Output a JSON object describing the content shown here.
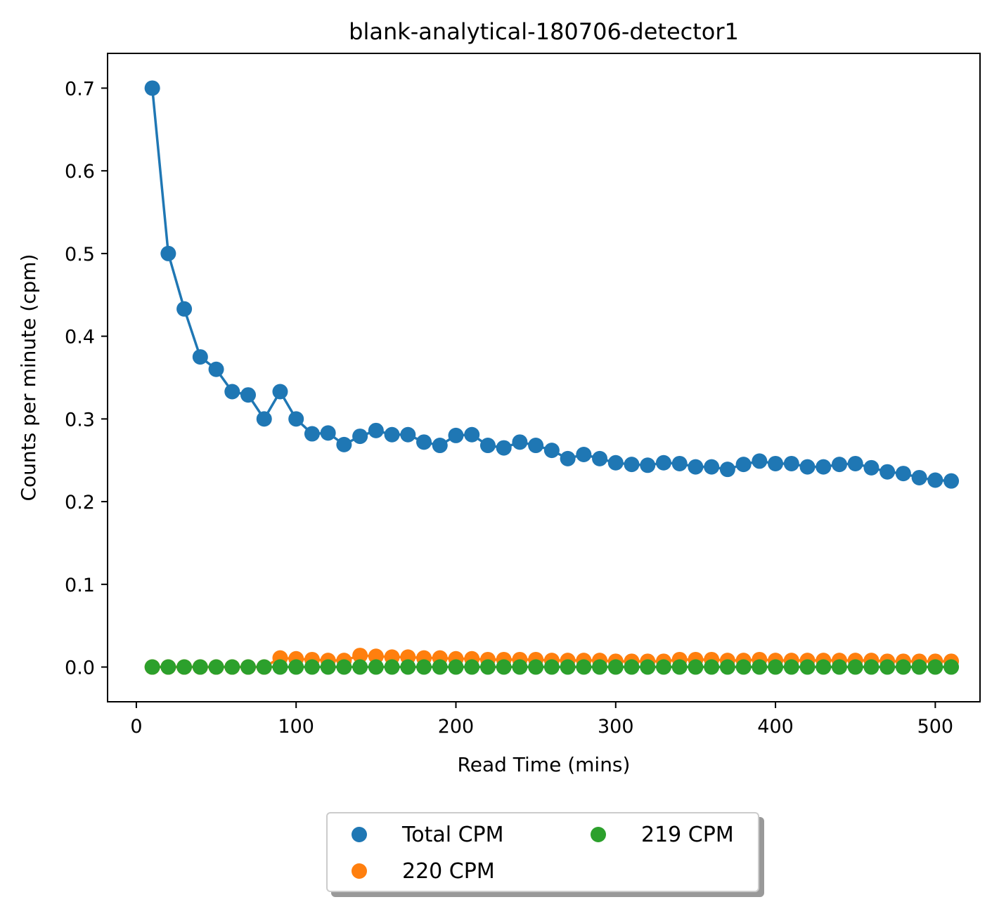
{
  "chart_data": {
    "type": "scatter",
    "title": "blank-analytical-180706-detector1",
    "xlabel": "Read Time (mins)",
    "ylabel": "Counts per minute (cpm)",
    "xlim": [
      -18,
      528
    ],
    "ylim": [
      -0.042,
      0.742
    ],
    "xticks": [
      0,
      100,
      200,
      300,
      400,
      500
    ],
    "xtick_labels": [
      "0",
      "100",
      "200",
      "300",
      "400",
      "500"
    ],
    "yticks": [
      0.0,
      0.1,
      0.2,
      0.3,
      0.4,
      0.5,
      0.6,
      0.7
    ],
    "ytick_labels": [
      "0.0",
      "0.1",
      "0.2",
      "0.3",
      "0.4",
      "0.5",
      "0.6",
      "0.7"
    ],
    "grid": false,
    "legend_position": "below-center",
    "x": [
      10,
      20,
      30,
      40,
      50,
      60,
      70,
      80,
      90,
      100,
      110,
      120,
      130,
      140,
      150,
      160,
      170,
      180,
      190,
      200,
      210,
      220,
      230,
      240,
      250,
      260,
      270,
      280,
      290,
      300,
      310,
      320,
      330,
      340,
      350,
      360,
      370,
      380,
      390,
      400,
      410,
      420,
      430,
      440,
      450,
      460,
      470,
      480,
      490,
      500,
      510
    ],
    "series": [
      {
        "name": "Total CPM",
        "color": "#1f77b4",
        "line": true,
        "values": [
          0.7,
          0.5,
          0.433,
          0.375,
          0.36,
          0.333,
          0.329,
          0.3,
          0.333,
          0.3,
          0.282,
          0.283,
          0.269,
          0.279,
          0.286,
          0.281,
          0.281,
          0.272,
          0.268,
          0.28,
          0.281,
          0.268,
          0.265,
          0.272,
          0.268,
          0.262,
          0.252,
          0.257,
          0.252,
          0.247,
          0.245,
          0.244,
          0.247,
          0.246,
          0.242,
          0.242,
          0.239,
          0.245,
          0.249,
          0.246,
          0.246,
          0.242,
          0.242,
          0.245,
          0.246,
          0.241,
          0.236,
          0.234,
          0.229,
          0.226,
          0.225
        ]
      },
      {
        "name": "220 CPM",
        "color": "#ff7f0e",
        "line": true,
        "values": [
          0.0,
          0.0,
          0.0,
          0.0,
          0.0,
          0.0,
          0.0,
          0.0,
          0.011,
          0.01,
          0.009,
          0.008,
          0.008,
          0.014,
          0.013,
          0.012,
          0.012,
          0.011,
          0.011,
          0.01,
          0.01,
          0.009,
          0.009,
          0.009,
          0.009,
          0.008,
          0.008,
          0.008,
          0.008,
          0.007,
          0.007,
          0.007,
          0.007,
          0.009,
          0.009,
          0.009,
          0.008,
          0.008,
          0.009,
          0.008,
          0.008,
          0.008,
          0.008,
          0.008,
          0.008,
          0.008,
          0.007,
          0.007,
          0.007,
          0.007,
          0.007
        ]
      },
      {
        "name": "219 CPM",
        "color": "#2ca02c",
        "line": true,
        "values": [
          0,
          0,
          0,
          0,
          0,
          0,
          0,
          0,
          0,
          0,
          0,
          0,
          0,
          0,
          0,
          0,
          0,
          0,
          0,
          0,
          0,
          0,
          0,
          0,
          0,
          0,
          0,
          0,
          0,
          0,
          0,
          0,
          0,
          0,
          0,
          0,
          0,
          0,
          0,
          0,
          0,
          0,
          0,
          0,
          0,
          0,
          0,
          0,
          0,
          0,
          0
        ]
      }
    ]
  }
}
